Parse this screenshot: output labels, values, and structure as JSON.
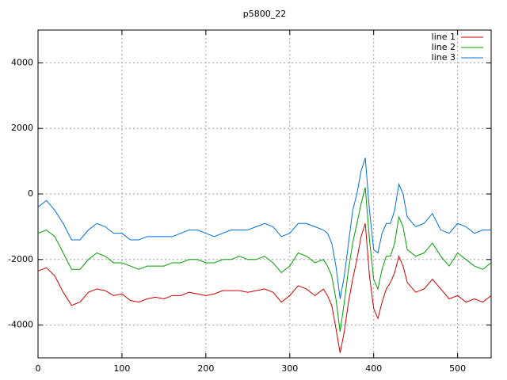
{
  "chart_data": {
    "type": "line",
    "title": "p5800_22",
    "x": [
      0,
      10,
      20,
      30,
      40,
      50,
      60,
      70,
      80,
      90,
      100,
      110,
      120,
      130,
      140,
      150,
      160,
      170,
      180,
      190,
      200,
      210,
      220,
      230,
      240,
      250,
      260,
      270,
      280,
      290,
      300,
      310,
      320,
      330,
      340,
      345,
      350,
      355,
      360,
      365,
      370,
      375,
      380,
      385,
      390,
      395,
      400,
      405,
      410,
      415,
      420,
      425,
      430,
      435,
      440,
      450,
      460,
      470,
      480,
      490,
      500,
      510,
      520,
      530,
      540
    ],
    "xlim": [
      0,
      540
    ],
    "ylim": [
      -5000,
      5000
    ],
    "xticks": [
      0,
      100,
      200,
      300,
      400,
      500
    ],
    "yticks": [
      -4000,
      -2000,
      0,
      2000,
      4000
    ],
    "grid": true,
    "legend": "top-right",
    "series": [
      {
        "name": "line 1",
        "color": "#d00000",
        "values": [
          -2350,
          -2250,
          -2500,
          -3000,
          -3400,
          -3300,
          -3000,
          -2900,
          -2950,
          -3100,
          -3050,
          -3250,
          -3300,
          -3200,
          -3150,
          -3200,
          -3100,
          -3100,
          -3000,
          -3050,
          -3100,
          -3050,
          -2950,
          -2950,
          -2950,
          -3000,
          -2950,
          -2900,
          -3000,
          -3300,
          -3100,
          -2800,
          -2900,
          -3100,
          -2900,
          -3100,
          -3400,
          -4100,
          -4850,
          -4200,
          -3300,
          -2600,
          -2000,
          -1300,
          -900,
          -2500,
          -3500,
          -3800,
          -3300,
          -2900,
          -2700,
          -2400,
          -1900,
          -2200,
          -2700,
          -3000,
          -2900,
          -2600,
          -2900,
          -3200,
          -3100,
          -3300,
          -3200,
          -3300,
          -3100
        ]
      },
      {
        "name": "line 2",
        "color": "#00a000",
        "values": [
          -1200,
          -1100,
          -1300,
          -1800,
          -2300,
          -2300,
          -2000,
          -1800,
          -1900,
          -2100,
          -2100,
          -2200,
          -2300,
          -2200,
          -2200,
          -2200,
          -2100,
          -2100,
          -2000,
          -2000,
          -2100,
          -2100,
          -2000,
          -2000,
          -1900,
          -2000,
          -2000,
          -1900,
          -2100,
          -2400,
          -2200,
          -1800,
          -1900,
          -2100,
          -2000,
          -2200,
          -2500,
          -3200,
          -4200,
          -3300,
          -2300,
          -1500,
          -900,
          -300,
          200,
          -1400,
          -2600,
          -2900,
          -2300,
          -1900,
          -1900,
          -1500,
          -700,
          -1000,
          -1700,
          -1900,
          -1800,
          -1500,
          -1900,
          -2200,
          -1800,
          -2000,
          -2200,
          -2300,
          -2100
        ]
      },
      {
        "name": "line 3",
        "color": "#0070e0",
        "values": [
          -400,
          -200,
          -500,
          -900,
          -1400,
          -1400,
          -1100,
          -900,
          -1000,
          -1200,
          -1200,
          -1400,
          -1400,
          -1300,
          -1300,
          -1300,
          -1300,
          -1200,
          -1100,
          -1100,
          -1200,
          -1300,
          -1200,
          -1100,
          -1100,
          -1100,
          -1000,
          -900,
          -1000,
          -1300,
          -1200,
          -900,
          -900,
          -1000,
          -1100,
          -1200,
          -1500,
          -2200,
          -3200,
          -2500,
          -1500,
          -500,
          0,
          700,
          1100,
          -500,
          -1700,
          -1800,
          -1200,
          -900,
          -900,
          -500,
          300,
          0,
          -700,
          -1000,
          -900,
          -600,
          -1100,
          -1200,
          -900,
          -1000,
          -1200,
          -1100,
          -1100
        ]
      }
    ]
  }
}
